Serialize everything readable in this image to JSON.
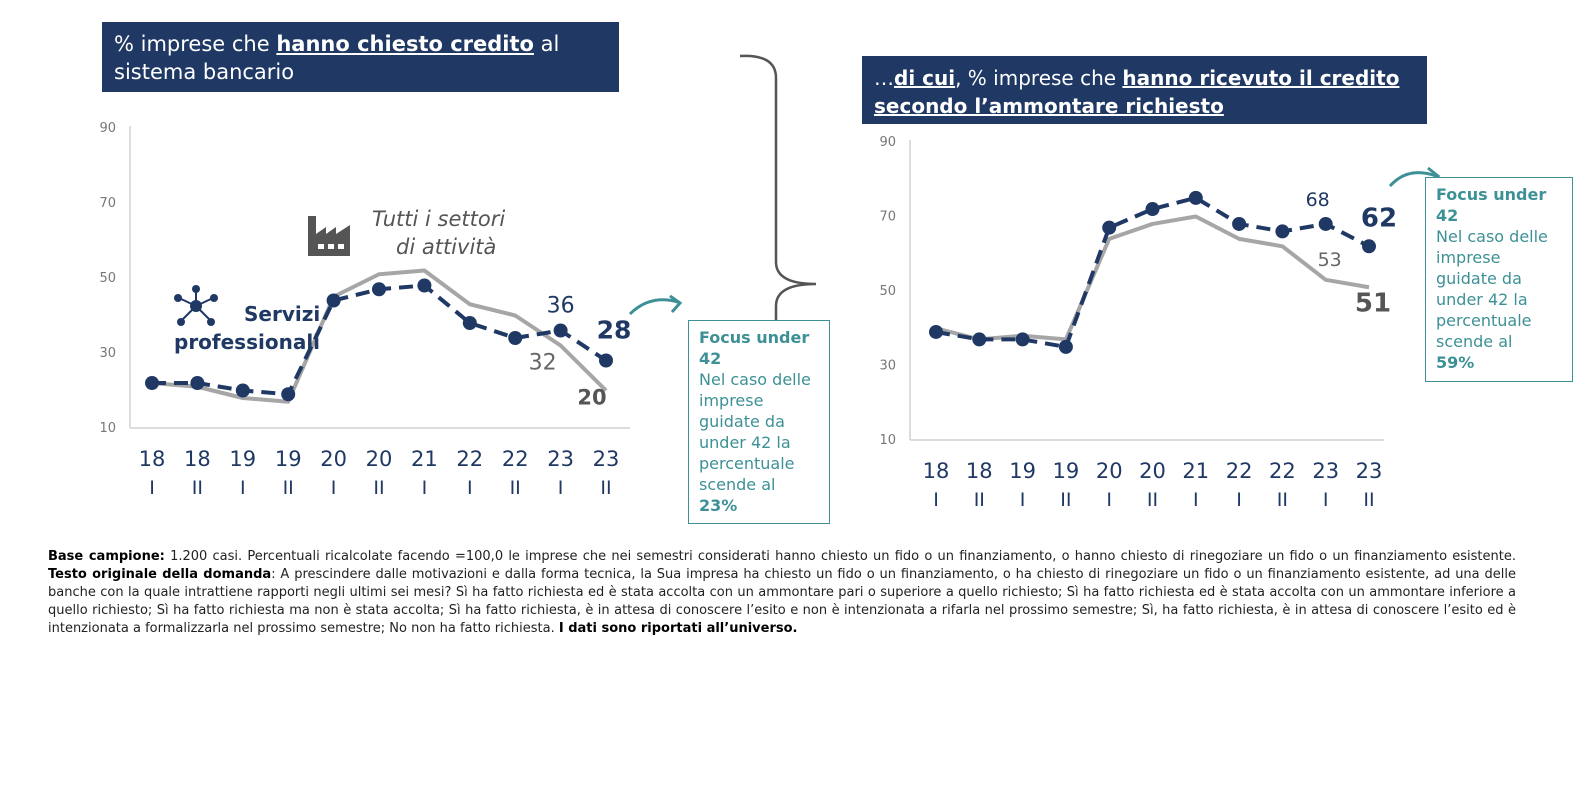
{
  "titles": {
    "left_pre": "% imprese che ",
    "left_bold": "hanno chiesto credito",
    "left_post": " al sistema bancario",
    "right_pre": "…",
    "right_bold1": "di cui",
    "right_mid": ", % imprese che ",
    "right_bold2": "hanno ricevuto il credito secondo l’ammontare richiesto"
  },
  "legend": {
    "tutti_line1": "Tutti i settori",
    "tutti_line2": "di attività",
    "servizi_line1": "Servizi",
    "servizi_line2": "professionali"
  },
  "focus_left": {
    "heading": "Focus under 42",
    "text": "Nel caso delle imprese guidate da under 42 la percentuale scende al",
    "pct": "23%"
  },
  "focus_right": {
    "heading": "Focus under 42",
    "text": "Nel caso delle imprese guidate da under 42 la percentuale scende al",
    "pct": "59%"
  },
  "footnote": {
    "base_label": "Base campione:",
    "base_text": " 1.200 casi. Percentuali ricalcolate facendo =100,0 le imprese che nei semestri considerati hanno chiesto un fido o un finanziamento, o hanno chiesto di rinegoziare un fido o un finanziamento esistente. ",
    "question_label": "Testo originale della domanda",
    "question_text": ": A prescindere dalle motivazioni e dalla forma tecnica, la Sua impresa ha chiesto un fido o un finanziamento, o ha chiesto di rinegoziare un fido o un finanziamento esistente, ad una delle banche con la quale intrattiene rapporti negli ultimi sei mesi? Sì ha fatto richiesta ed è stata accolta con un ammontare pari o superiore a quello richiesto; Sì ha fatto richiesta ed è stata accolta con un ammontare inferiore a quello richiesto; Sì ha fatto richiesta ma non è stata accolta; Sì ha fatto richiesta, è in attesa di conoscere l’esito e non è intenzionata a rifarla nel prossimo semestre; Sì, ha fatto richiesta, è in attesa di conoscere l’esito ed è intenzionata a formalizzarla nel prossimo semestre; No non ha fatto richiesta. ",
    "universe_text": "I dati sono riportati all’universo."
  },
  "colors": {
    "navy": "#1f3864",
    "grey": "#a6a6a6",
    "teal": "#3d9196"
  },
  "chart_data": [
    {
      "type": "line",
      "categories": [
        [
          "18",
          "I"
        ],
        [
          "18",
          "II"
        ],
        [
          "19",
          "I"
        ],
        [
          "19",
          "II"
        ],
        [
          "20",
          "I"
        ],
        [
          "20",
          "II"
        ],
        [
          "21",
          "I"
        ],
        [
          "22",
          "I"
        ],
        [
          "22",
          "II"
        ],
        [
          "23",
          "I"
        ],
        [
          "23",
          "II"
        ]
      ],
      "ylim": [
        10,
        90
      ],
      "yticks": [
        10,
        30,
        50,
        70,
        90
      ],
      "grid": false,
      "series": [
        {
          "name": "Servizi professionali",
          "style": "dashed-markers",
          "values": [
            22,
            22,
            20,
            19,
            44,
            47,
            48,
            38,
            34,
            36,
            28
          ],
          "labels": [
            {
              "index": 9,
              "text": "36"
            },
            {
              "index": 10,
              "text": "28"
            }
          ]
        },
        {
          "name": "Tutti i settori di attività",
          "style": "solid",
          "values": [
            22,
            21,
            18,
            17,
            45,
            51,
            52,
            43,
            40,
            32,
            20
          ],
          "labels": [
            {
              "index": 9,
              "text": "32"
            },
            {
              "index": 10,
              "text": "20"
            }
          ]
        }
      ]
    },
    {
      "type": "line",
      "categories": [
        [
          "18",
          "I"
        ],
        [
          "18",
          "II"
        ],
        [
          "19",
          "I"
        ],
        [
          "19",
          "II"
        ],
        [
          "20",
          "I"
        ],
        [
          "20",
          "II"
        ],
        [
          "21",
          "I"
        ],
        [
          "22",
          "I"
        ],
        [
          "22",
          "II"
        ],
        [
          "23",
          "I"
        ],
        [
          "23",
          "II"
        ]
      ],
      "ylim": [
        10,
        90
      ],
      "yticks": [
        10,
        30,
        50,
        70,
        90
      ],
      "grid": false,
      "series": [
        {
          "name": "Servizi professionali",
          "style": "dashed-markers",
          "values": [
            39,
            37,
            37,
            35,
            67,
            72,
            75,
            68,
            66,
            68,
            62
          ],
          "labels": [
            {
              "index": 9,
              "text": "68"
            },
            {
              "index": 10,
              "text": "62"
            }
          ]
        },
        {
          "name": "Tutti i settori di attività",
          "style": "solid",
          "values": [
            40,
            37,
            38,
            37,
            64,
            68,
            70,
            64,
            62,
            53,
            51
          ],
          "labels": [
            {
              "index": 9,
              "text": "53"
            },
            {
              "index": 10,
              "text": "51"
            }
          ]
        }
      ]
    }
  ]
}
